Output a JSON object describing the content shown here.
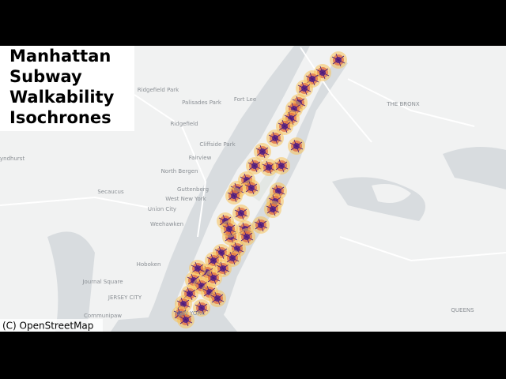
{
  "title": {
    "lines": [
      "Manhattan",
      "Subway",
      "Walkability",
      "Isochrones"
    ]
  },
  "attribution": "(C) OpenStreetMap",
  "places": [
    {
      "label": "Ridgefield Park"
    },
    {
      "label": "Palisades Park"
    },
    {
      "label": "Fort Lee"
    },
    {
      "label": "Ridgefield"
    },
    {
      "label": "Cliffside Park"
    },
    {
      "label": "Fairview"
    },
    {
      "label": "North Bergen"
    },
    {
      "label": "Secaucus"
    },
    {
      "label": "Guttenberg"
    },
    {
      "label": "West New York"
    },
    {
      "label": "Union City"
    },
    {
      "label": "Weehawken"
    },
    {
      "label": "Hoboken"
    },
    {
      "label": "Journal Square"
    },
    {
      "label": "JERSEY CITY"
    },
    {
      "label": "Communipaw"
    },
    {
      "label": "NEW YORK"
    },
    {
      "label": "THE BRONX"
    },
    {
      "label": "QUEENS"
    },
    {
      "label": "Lyndhurst"
    }
  ]
}
